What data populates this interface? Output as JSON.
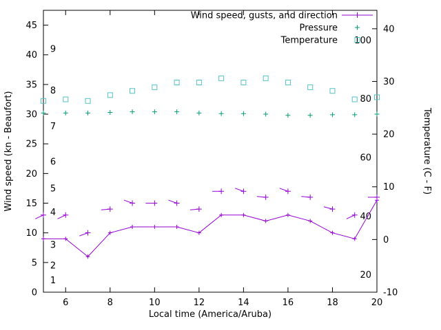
{
  "chart_data": {
    "type": "line",
    "title": "",
    "xlabel": "Local time (America/Aruba)",
    "ylabel": "Wind speed (kn - Beaufort)",
    "y2label": "Temperature (C - F)",
    "grid": false,
    "legend_position": "top-right-inside",
    "xlim": [
      5,
      20
    ],
    "x_ticks": [
      6,
      8,
      10,
      12,
      14,
      16,
      18,
      20
    ],
    "ylim": [
      0,
      47.5
    ],
    "y_ticks": [
      0,
      5,
      10,
      15,
      20,
      25,
      30,
      35,
      40,
      45
    ],
    "y2lim": [
      -10,
      43.5
    ],
    "y2_ticks": [
      -10,
      0,
      10,
      20,
      30,
      40
    ],
    "beaufort_labels": [
      {
        "label": "1",
        "kn": 2
      },
      {
        "label": "2",
        "kn": 4.5
      },
      {
        "label": "3",
        "kn": 8
      },
      {
        "label": "4",
        "kn": 13.5
      },
      {
        "label": "5",
        "kn": 17.5
      },
      {
        "label": "6",
        "kn": 22
      },
      {
        "label": "7",
        "kn": 28
      },
      {
        "label": "8",
        "kn": 34
      },
      {
        "label": "9",
        "kn": 41
      }
    ],
    "fahrenheit_labels": [
      {
        "label": "20",
        "c": -6.7
      },
      {
        "label": "40",
        "c": 4.4
      },
      {
        "label": "60",
        "c": 15.6
      },
      {
        "label": "80",
        "c": 26.7
      },
      {
        "label": "100",
        "c": 37.8
      }
    ],
    "x": [
      5,
      6,
      7,
      8,
      9,
      10,
      11,
      12,
      13,
      14,
      15,
      16,
      17,
      18,
      19,
      20
    ],
    "series": [
      {
        "name": "Wind speed, gusts, and direction",
        "type": "wind",
        "marker": "plus",
        "color": "#9400d3",
        "axis": "left",
        "speed": [
          9,
          9,
          6,
          10,
          11,
          11,
          11,
          10,
          13,
          13,
          12,
          13,
          12,
          10,
          9,
          15.5
        ],
        "gusts": [
          13,
          13,
          10,
          14,
          15,
          15,
          15,
          14,
          17,
          17,
          16,
          17,
          16,
          14,
          13,
          16
        ],
        "dir_deg": [
          205,
          205,
          200,
          185,
          160,
          180,
          160,
          185,
          180,
          160,
          175,
          160,
          175,
          165,
          205,
          180
        ]
      },
      {
        "name": "Pressure",
        "type": "points",
        "marker": "plus",
        "color": "#009e73",
        "axis": "left",
        "values": [
          30.2,
          30.2,
          30.2,
          30.3,
          30.4,
          30.4,
          30.4,
          30.2,
          30.1,
          30.1,
          30.0,
          29.8,
          29.8,
          29.9,
          29.9,
          30.0
        ]
      },
      {
        "name": "Temperature",
        "type": "points",
        "marker": "open-square",
        "color": "#53c3c3",
        "axis": "right",
        "values": [
          26.3,
          26.6,
          26.3,
          27.4,
          28.2,
          28.9,
          29.8,
          29.8,
          30.6,
          29.8,
          30.6,
          29.8,
          28.9,
          28.2,
          26.6,
          27.0
        ]
      }
    ]
  },
  "colors": {
    "background": "#ffffff",
    "axis": "#000000",
    "wind": "#9400d3",
    "pressure": "#009e73",
    "temperature": "#53c3c3"
  }
}
